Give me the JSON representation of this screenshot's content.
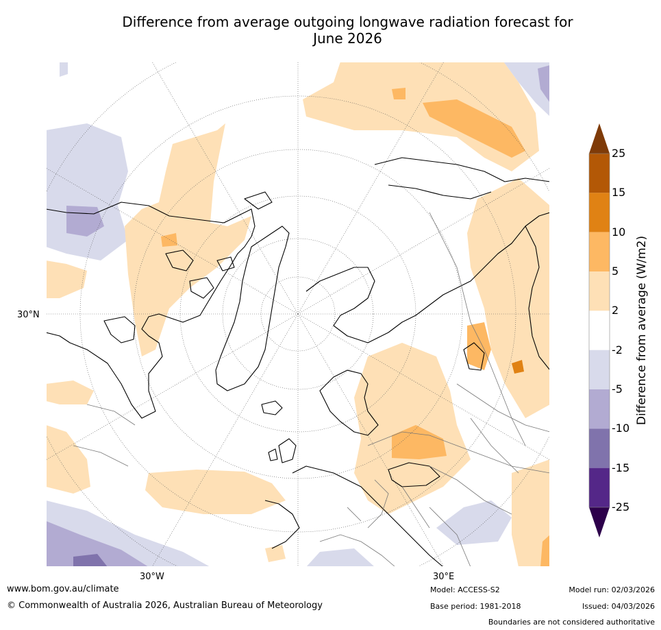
{
  "title": {
    "line1": "Difference from average outgoing longwave radiation forecast for",
    "line2": "June 2026"
  },
  "map": {
    "lat_label": "30°N",
    "lon_labels": [
      "30°W",
      "30°E"
    ]
  },
  "colorbar": {
    "label": "Difference from average (W/m2)",
    "ticks": [
      "25",
      "15",
      "10",
      "5",
      "2",
      "-2",
      "-5",
      "-10",
      "-15",
      "-25"
    ],
    "colors": {
      "above_25": "#7f3b08",
      "15_25": "#b35806",
      "10_15": "#e08214",
      "5_10": "#fdb863",
      "2_5": "#fee0b6",
      "neutral": "#ffffff",
      "-5_-2": "#d8daeb",
      "-10_-5": "#b2abd2",
      "-15_-10": "#8073ac",
      "-25_-15": "#542788",
      "below_-25": "#2d004b"
    }
  },
  "footer": {
    "website": "www.bom.gov.au/climate",
    "copyright": "© Commonwealth of Australia 2026, Australian Bureau of Meteorology",
    "model": "Model: ACCESS-S2",
    "base_period": "Base period: 1981-2018",
    "model_run": "Model run: 02/03/2026",
    "issued": "Issued: 04/03/2026",
    "disclaimer": "Boundaries are not considered authoritative"
  }
}
